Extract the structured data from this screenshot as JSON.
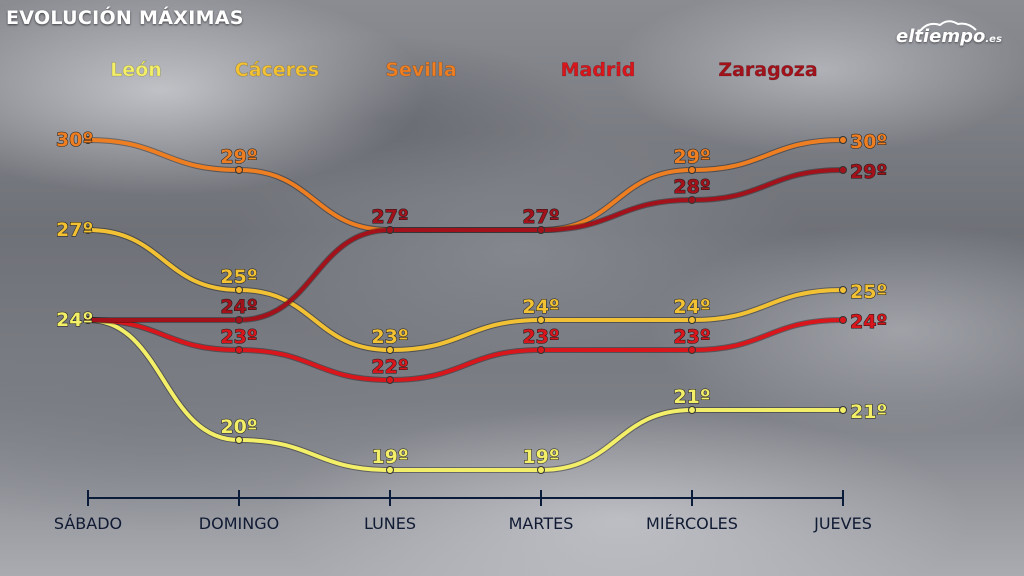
{
  "header": {
    "title": "EVOLUCIÓN MÁXIMAS",
    "logo_main": "eltiempo",
    "logo_tld": ".es",
    "logo_icon": "cloud-swoosh-icon"
  },
  "chart_data": {
    "type": "line",
    "title": "EVOLUCIÓN MÁXIMAS",
    "categories": [
      "SÁBADO",
      "DOMINGO",
      "LUNES",
      "MARTES",
      "MIÉRCOLES",
      "JUEVES"
    ],
    "unit": "º",
    "ylim": [
      18,
      31
    ],
    "grid": false,
    "legend_position": "top",
    "series": [
      {
        "name": "León",
        "color": "#f3ef68",
        "values": [
          24,
          20,
          19,
          19,
          21,
          21
        ]
      },
      {
        "name": "Cáceres",
        "color": "#f2c234",
        "values": [
          27,
          25,
          23,
          24,
          24,
          25
        ]
      },
      {
        "name": "Sevilla",
        "color": "#ee7e22",
        "values": [
          30,
          29,
          27,
          27,
          29,
          30
        ]
      },
      {
        "name": "Madrid",
        "color": "#d8161c",
        "values": [
          24,
          23,
          22,
          23,
          23,
          24
        ]
      },
      {
        "name": "Zaragoza",
        "color": "#a3121a",
        "values": [
          24,
          24,
          27,
          27,
          28,
          29
        ]
      }
    ],
    "labels": [
      {
        "series": 0,
        "point": 0,
        "text": "24º"
      },
      {
        "series": 1,
        "point": 0,
        "text": "27º"
      },
      {
        "series": 2,
        "point": 0,
        "text": "30º"
      },
      {
        "series": 0,
        "point": 1,
        "text": "20º"
      },
      {
        "series": 1,
        "point": 1,
        "text": "25º"
      },
      {
        "series": 2,
        "point": 1,
        "text": "29º"
      },
      {
        "series": 3,
        "point": 1,
        "text": "23º"
      },
      {
        "series": 4,
        "point": 1,
        "text": "24º"
      },
      {
        "series": 0,
        "point": 2,
        "text": "19º"
      },
      {
        "series": 1,
        "point": 2,
        "text": "23º"
      },
      {
        "series": 3,
        "point": 2,
        "text": "22º"
      },
      {
        "series": 4,
        "point": 2,
        "text": "27º"
      },
      {
        "series": 0,
        "point": 3,
        "text": "19º"
      },
      {
        "series": 1,
        "point": 3,
        "text": "24º"
      },
      {
        "series": 3,
        "point": 3,
        "text": "23º"
      },
      {
        "series": 4,
        "point": 3,
        "text": "27º"
      },
      {
        "series": 0,
        "point": 4,
        "text": "21º"
      },
      {
        "series": 1,
        "point": 4,
        "text": "24º"
      },
      {
        "series": 2,
        "point": 4,
        "text": "29º"
      },
      {
        "series": 3,
        "point": 4,
        "text": "23º"
      },
      {
        "series": 4,
        "point": 4,
        "text": "28º"
      },
      {
        "series": 0,
        "point": 5,
        "text": "21º"
      },
      {
        "series": 1,
        "point": 5,
        "text": "25º"
      },
      {
        "series": 2,
        "point": 5,
        "text": "30º"
      },
      {
        "series": 3,
        "point": 5,
        "text": "24º"
      },
      {
        "series": 4,
        "point": 5,
        "text": "29º"
      }
    ]
  }
}
